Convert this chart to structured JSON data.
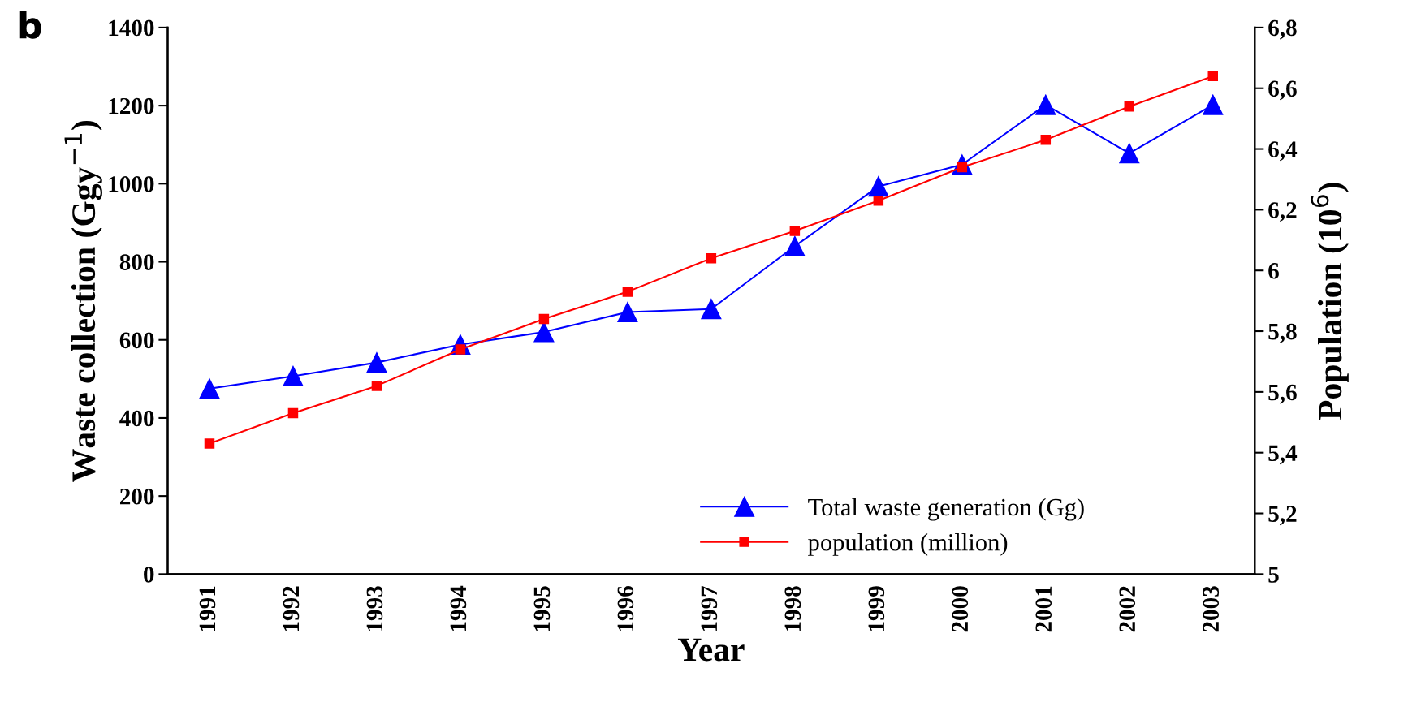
{
  "chart_data": {
    "type": "line",
    "xlabel": "Year",
    "ylabel": "Waste collection (Ggy$^{−1}$)",
    "y2label": "Population (10$^{6}$)",
    "annotations": [
      "b"
    ],
    "categories": [
      "1991",
      "1992",
      "1993",
      "1994",
      "1995",
      "1996",
      "1997",
      "1998",
      "1999",
      "2000",
      "2001",
      "2002",
      "2003"
    ],
    "series": [
      {
        "name": "Total waste generation (Gg)",
        "color": "#0000ff",
        "marker": "triangle",
        "values": [
          475,
          507,
          542,
          588,
          620,
          671,
          679,
          840,
          993,
          1049,
          1202,
          1078,
          1202
        ]
      },
      {
        "name": "population (million)",
        "color": "#ff0000",
        "marker": "square",
        "axis": "y2",
        "values": [
          5.43,
          5.53,
          5.62,
          5.74,
          5.84,
          5.93,
          6.04,
          6.13,
          6.23,
          6.34,
          6.43,
          6.54,
          6.64
        ]
      }
    ],
    "ylim": [
      0,
      1400
    ],
    "yticks": [
      0,
      200,
      400,
      600,
      800,
      1000,
      1200,
      1400
    ],
    "y2lim": [
      5,
      6.8
    ],
    "y2ticks": [
      5,
      {
        "value": 5.2,
        "label": "5,2"
      },
      {
        "value": 5.4,
        "label": "5,4"
      },
      {
        "value": 5.6,
        "label": "5,6"
      },
      {
        "value": 5.8,
        "label": "5,8"
      },
      6,
      {
        "value": 6.2,
        "label": "6,2"
      },
      {
        "value": 6.4,
        "label": "6,4"
      },
      {
        "value": 6.6,
        "label": "6,6"
      },
      {
        "value": 6.8,
        "label": "6,8"
      }
    ],
    "legend": "bottom right",
    "grid": false
  }
}
